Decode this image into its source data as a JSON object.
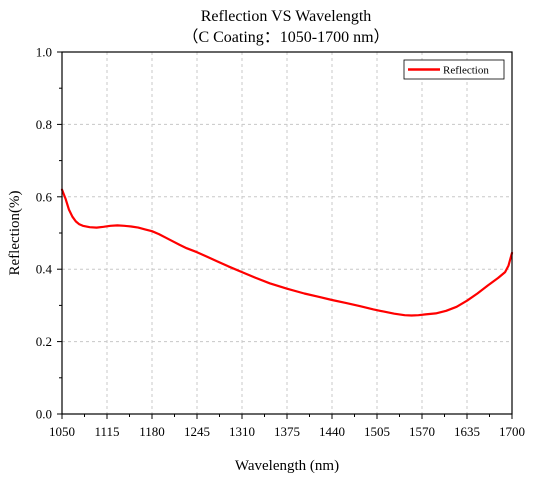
{
  "chart_data": {
    "type": "line",
    "title": "Reflection VS Wavelength",
    "subtitle": "（C Coating：1050-1700 nm）",
    "xlabel": "Wavelength (nm)",
    "ylabel": "Reflection(%)",
    "xlim": [
      1050,
      1700
    ],
    "ylim": [
      0,
      1.0
    ],
    "x_ticks": [
      "1050",
      "1115",
      "1180",
      "1245",
      "1310",
      "1375",
      "1440",
      "1505",
      "1570",
      "1635",
      "1700"
    ],
    "y_ticks": [
      "0.0",
      "0.2",
      "0.4",
      "0.6",
      "0.8",
      "1.0"
    ],
    "grid": true,
    "legend_position": "top-right",
    "series": [
      {
        "name": "Reflection",
        "color": "#ff0000",
        "x": [
          1050,
          1055,
          1060,
          1065,
          1070,
          1075,
          1080,
          1090,
          1100,
          1110,
          1120,
          1130,
          1140,
          1150,
          1160,
          1170,
          1180,
          1190,
          1200,
          1210,
          1220,
          1230,
          1245,
          1260,
          1275,
          1290,
          1310,
          1330,
          1350,
          1375,
          1400,
          1420,
          1440,
          1460,
          1480,
          1500,
          1515,
          1530,
          1545,
          1555,
          1565,
          1575,
          1590,
          1605,
          1620,
          1635,
          1650,
          1665,
          1680,
          1690,
          1695,
          1700
        ],
        "y": [
          0.62,
          0.595,
          0.565,
          0.545,
          0.532,
          0.524,
          0.52,
          0.516,
          0.515,
          0.517,
          0.52,
          0.521,
          0.52,
          0.518,
          0.515,
          0.51,
          0.505,
          0.497,
          0.487,
          0.477,
          0.467,
          0.458,
          0.447,
          0.434,
          0.421,
          0.408,
          0.392,
          0.376,
          0.361,
          0.346,
          0.333,
          0.324,
          0.315,
          0.307,
          0.298,
          0.289,
          0.283,
          0.277,
          0.273,
          0.272,
          0.273,
          0.275,
          0.278,
          0.285,
          0.296,
          0.313,
          0.333,
          0.355,
          0.376,
          0.392,
          0.41,
          0.445
        ]
      }
    ]
  }
}
